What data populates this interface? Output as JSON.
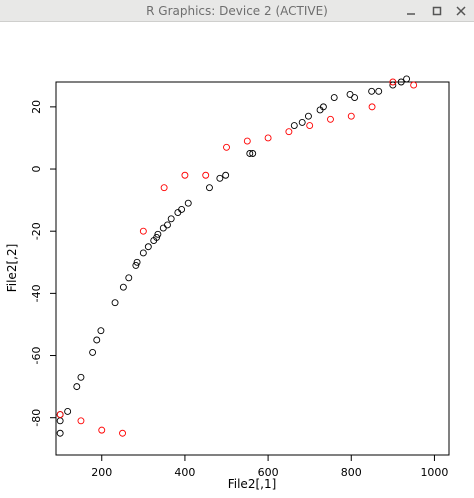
{
  "window": {
    "title": "R Graphics: Device 2 (ACTIVE)",
    "controls": [
      {
        "name": "minimize-icon"
      },
      {
        "name": "maximize-icon"
      },
      {
        "name": "close-icon"
      }
    ]
  },
  "chart_data": {
    "type": "scatter",
    "xlabel": "File2[,1]",
    "ylabel": "File2[,2]",
    "xlim": [
      90,
      1035
    ],
    "ylim": [
      -92,
      28
    ],
    "xticks": [
      200,
      400,
      600,
      800,
      1000
    ],
    "yticks": [
      20,
      0,
      -20,
      -40,
      -60,
      -80
    ],
    "ytick_labels": [
      "20",
      "0",
      "-20",
      "-40",
      "-60",
      "-80"
    ],
    "grid": false,
    "legend": "none",
    "series": [
      {
        "color": "#000000",
        "points": [
          [
            100,
            -85
          ],
          [
            100,
            -81
          ],
          [
            100,
            -79
          ],
          [
            118,
            -78
          ],
          [
            140,
            -70
          ],
          [
            150,
            -67
          ],
          [
            178,
            -59
          ],
          [
            188,
            -55
          ],
          [
            198,
            -52
          ],
          [
            232,
            -43
          ],
          [
            252,
            -38
          ],
          [
            265,
            -35
          ],
          [
            282,
            -31
          ],
          [
            285,
            -30
          ],
          [
            300,
            -27
          ],
          [
            312,
            -25
          ],
          [
            325,
            -23
          ],
          [
            332,
            -22
          ],
          [
            335,
            -21
          ],
          [
            348,
            -19
          ],
          [
            358,
            -18
          ],
          [
            367,
            -16
          ],
          [
            383,
            -14
          ],
          [
            392,
            -13
          ],
          [
            408,
            -11
          ],
          [
            459,
            -6
          ],
          [
            484,
            -3
          ],
          [
            498,
            -2
          ],
          [
            556,
            5
          ],
          [
            563,
            5
          ],
          [
            663,
            14
          ],
          [
            682,
            15
          ],
          [
            697,
            17
          ],
          [
            725,
            19
          ],
          [
            733,
            20
          ],
          [
            759,
            23
          ],
          [
            797,
            24
          ],
          [
            808,
            23
          ],
          [
            849,
            25
          ],
          [
            866,
            25
          ],
          [
            900,
            27
          ],
          [
            920,
            28
          ],
          [
            933,
            29
          ]
        ]
      },
      {
        "color": "#ff0000",
        "points": [
          [
            100,
            -79
          ],
          [
            150,
            -81
          ],
          [
            200,
            -84
          ],
          [
            250,
            -85
          ],
          [
            300,
            -20
          ],
          [
            350,
            -6
          ],
          [
            400,
            -2
          ],
          [
            450,
            -2
          ],
          [
            500,
            7
          ],
          [
            550,
            9
          ],
          [
            600,
            10
          ],
          [
            650,
            12
          ],
          [
            700,
            14
          ],
          [
            750,
            16
          ],
          [
            800,
            17
          ],
          [
            850,
            20
          ],
          [
            900,
            28
          ],
          [
            950,
            27
          ]
        ]
      }
    ]
  }
}
